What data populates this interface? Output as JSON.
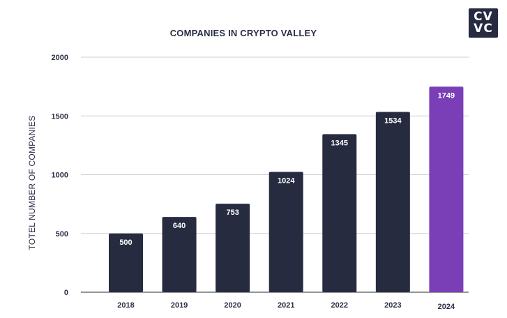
{
  "logo": {
    "line1": "CV",
    "line2": "VC"
  },
  "colors": {
    "bar": "#272b40",
    "highlight": "#7a3fb7",
    "grid": "#cfcfcf",
    "text": "#2a2f45"
  },
  "chart_data": {
    "type": "bar",
    "title": "COMPANIES IN CRYPTO VALLEY",
    "xlabel": "",
    "ylabel": "TOTEL NUMBER OF COMPANIES",
    "categories": [
      "2018",
      "2019",
      "2020",
      "2021",
      "2022",
      "2023",
      "2024"
    ],
    "values": [
      500,
      640,
      753,
      1024,
      1345,
      1534,
      1749
    ],
    "value_labels": [
      "500",
      "640",
      "753",
      "1024",
      "1345",
      "1534",
      "1749"
    ],
    "highlight_category": "2024",
    "ylim": [
      0,
      2000
    ],
    "yticks": [
      0,
      500,
      1000,
      1500,
      2000
    ],
    "ytick_labels": [
      "0",
      "500",
      "1000",
      "1500",
      "2000"
    ],
    "grid": true,
    "legend": "none"
  }
}
